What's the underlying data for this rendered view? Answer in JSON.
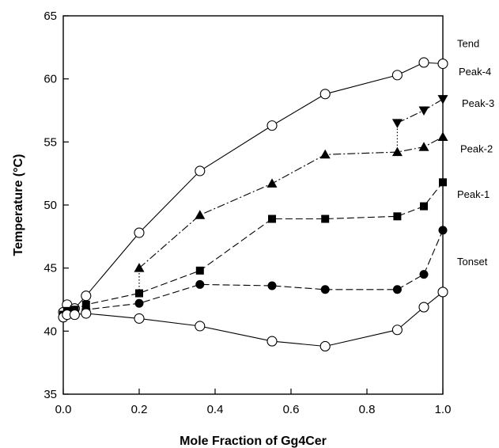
{
  "chart_data": {
    "type": "line",
    "title": "",
    "xlabel": "Mole Fraction of Gg4Cer",
    "ylabel": "Temperature (°C)",
    "xlim": [
      0.0,
      1.0
    ],
    "ylim": [
      35,
      65
    ],
    "xticks": [
      0.0,
      0.2,
      0.4,
      0.6,
      0.8,
      1.0
    ],
    "xtick_labels": [
      "0.0",
      "0.2",
      "0.4",
      "0.6",
      "0.8",
      "1.0"
    ],
    "yticks": [
      35,
      40,
      45,
      50,
      55,
      60,
      65
    ],
    "ytick_labels": [
      "35",
      "40",
      "45",
      "50",
      "55",
      "60",
      "65"
    ],
    "grid": false,
    "legend": "labels at right end of each series",
    "series": [
      {
        "name": "Tend",
        "marker": "open-circle",
        "line": "solid",
        "x": [
          0.0,
          0.01,
          0.03,
          0.06,
          0.2,
          0.36,
          0.55,
          0.69,
          0.88,
          0.95,
          1.0
        ],
        "y": [
          41.5,
          42.1,
          41.8,
          42.8,
          47.8,
          52.7,
          56.3,
          58.8,
          60.3,
          61.3,
          61.2
        ]
      },
      {
        "name": "Peak-4",
        "marker": "filled-triangle-down",
        "line": "dash-dot",
        "x": [
          0.88,
          0.95,
          1.0
        ],
        "y": [
          56.5,
          57.5,
          58.4
        ]
      },
      {
        "name": "Peak-3",
        "marker": "filled-triangle-up",
        "line": "dash-dot",
        "x": [
          0.2,
          0.36,
          0.55,
          0.69,
          0.88,
          0.95,
          1.0
        ],
        "y": [
          45.0,
          49.2,
          51.7,
          54.0,
          54.2,
          54.6,
          55.4
        ]
      },
      {
        "name": "Peak-2",
        "marker": "filled-square",
        "line": "dash",
        "x": [
          0.0,
          0.01,
          0.03,
          0.06,
          0.2,
          0.36,
          0.55,
          0.69,
          0.88,
          0.95,
          1.0
        ],
        "y": [
          41.3,
          41.6,
          41.7,
          42.1,
          43.0,
          44.8,
          48.9,
          48.9,
          49.1,
          49.9,
          51.8
        ]
      },
      {
        "name": "Peak-1",
        "marker": "filled-circle",
        "line": "dash",
        "x": [
          0.0,
          0.01,
          0.03,
          0.06,
          0.2,
          0.36,
          0.55,
          0.69,
          0.88,
          0.95,
          1.0
        ],
        "y": [
          41.2,
          41.5,
          41.5,
          41.7,
          42.2,
          43.7,
          43.6,
          43.3,
          43.3,
          44.5,
          48.0
        ]
      },
      {
        "name": "Tonset",
        "marker": "open-circle",
        "line": "solid",
        "x": [
          0.0,
          0.01,
          0.03,
          0.06,
          0.2,
          0.36,
          0.55,
          0.69,
          0.88,
          0.95,
          1.0
        ],
        "y": [
          41.1,
          41.3,
          41.3,
          41.4,
          41.0,
          40.4,
          39.2,
          38.8,
          40.1,
          41.9,
          43.1
        ]
      }
    ],
    "dotted_connectors": [
      {
        "x": 0.2,
        "y_from": 43.0,
        "y_to": 45.0
      },
      {
        "x": 0.88,
        "y_from": 54.2,
        "y_to": 56.5
      }
    ]
  }
}
